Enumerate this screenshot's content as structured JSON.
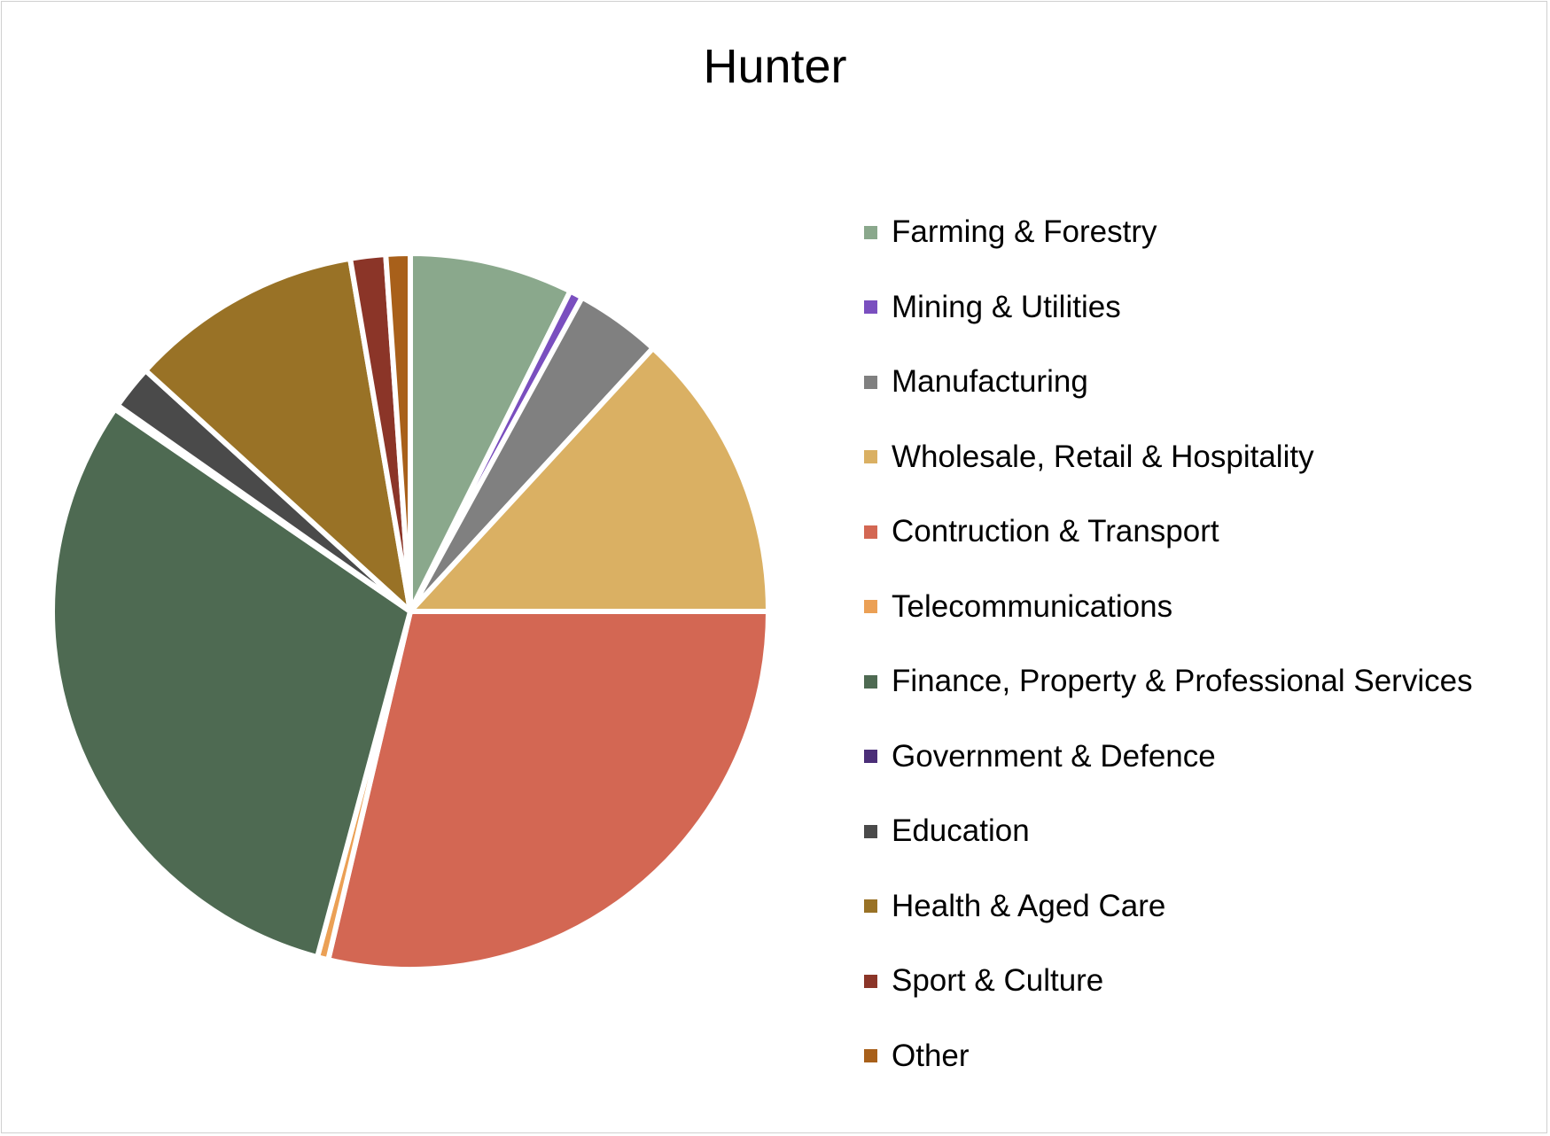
{
  "chart_data": {
    "type": "pie",
    "title": "Hunter",
    "start_angle": "12 o'clock, clockwise",
    "legend_position": "right",
    "unit": "percent (estimated)",
    "slices": [
      {
        "label": "Farming & Forestry",
        "value": 7.4,
        "color": "#8aa88c"
      },
      {
        "label": "Mining & Utilities",
        "value": 0.6,
        "color": "#7a4fbf"
      },
      {
        "label": "Manufacturing",
        "value": 3.9,
        "color": "#808080"
      },
      {
        "label": "Wholesale, Retail & Hospitality",
        "value": 13.2,
        "color": "#dab063"
      },
      {
        "label": "Contruction & Transport",
        "value": 28.8,
        "color": "#d36753"
      },
      {
        "label": "Telecommunications",
        "value": 0.5,
        "color": "#eba055"
      },
      {
        "label": "Finance, Property & Professional Services",
        "value": 30.5,
        "color": "#4e6a52"
      },
      {
        "label": "Government & Defence",
        "value": 0.2,
        "color": "#4b2e78"
      },
      {
        "label": "Education",
        "value": 2.0,
        "color": "#4a4a4a"
      },
      {
        "label": "Health & Aged Care",
        "value": 10.6,
        "color": "#997226"
      },
      {
        "label": "Sport & Culture",
        "value": 1.6,
        "color": "#8b3528"
      },
      {
        "label": "Other",
        "value": 1.1,
        "color": "#a8601a"
      }
    ]
  }
}
